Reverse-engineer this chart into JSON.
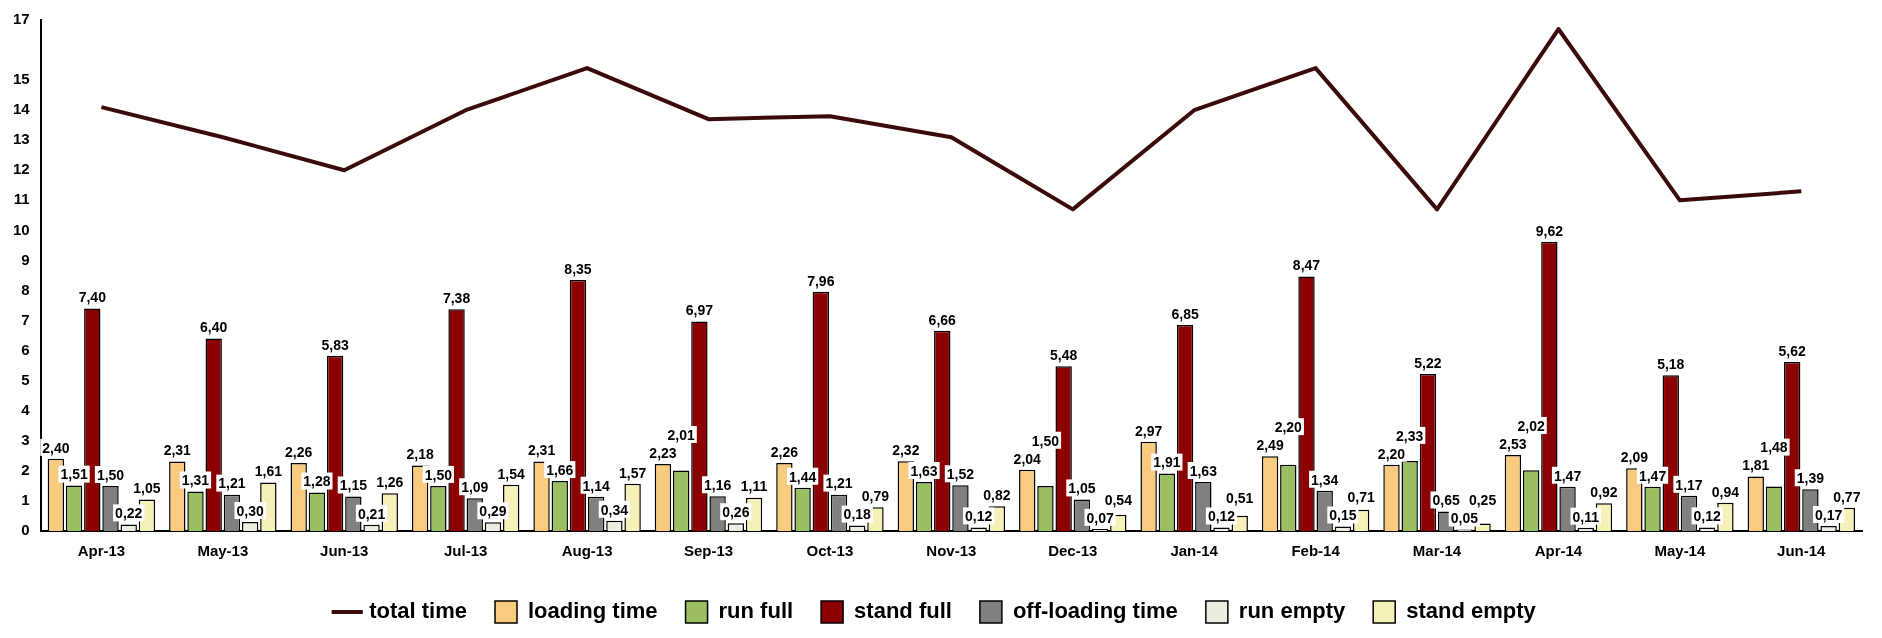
{
  "chart_data": {
    "type": "bar",
    "categories": [
      "Apr-13",
      "May-13",
      "Jun-13",
      "Jul-13",
      "Aug-13",
      "Sep-13",
      "Oct-13",
      "Nov-13",
      "Dec-13",
      "Jan-14",
      "Feb-14",
      "Mar-14",
      "Apr-14",
      "May-14",
      "Jun-14"
    ],
    "ylim": [
      0,
      17
    ],
    "yticks": [
      0,
      1,
      2,
      3,
      4,
      5,
      6,
      7,
      8,
      9,
      10,
      11,
      12,
      13,
      14,
      15,
      17
    ],
    "grid": false,
    "legend": "bottom",
    "series": [
      {
        "name": "total time",
        "type": "line",
        "color": "#3b0a0a",
        "marker": "none",
        "values": [
          14.1,
          13.1,
          12.0,
          14.0,
          15.4,
          13.7,
          13.8,
          13.1,
          10.7,
          14.0,
          15.4,
          10.7,
          16.7,
          11.0,
          11.3
        ]
      },
      {
        "name": "loading time",
        "color": "#f9cb7e",
        "values": [
          2.4,
          2.31,
          2.26,
          2.18,
          2.31,
          2.23,
          2.26,
          2.32,
          2.04,
          2.97,
          2.49,
          2.2,
          2.53,
          2.09,
          1.81
        ],
        "value_labels": [
          "2,40",
          "2,31",
          "2,26",
          "2,18",
          "2,31",
          "2,23",
          "2,26",
          "2,32",
          "2,04",
          "2,97",
          "2,49",
          "2,20",
          "2,53",
          "2,09",
          "1,81"
        ]
      },
      {
        "name": "run full",
        "color": "#9bbf60",
        "values": [
          1.51,
          1.31,
          1.28,
          1.5,
          1.66,
          2.01,
          1.44,
          1.63,
          1.5,
          1.91,
          2.2,
          2.33,
          2.02,
          1.47,
          1.48
        ],
        "value_labels": [
          "1,51",
          "1,31",
          "1,28",
          "1,50",
          "1,66",
          "2,01",
          "1,44",
          "1,63",
          "1,50",
          "1,91",
          "2,20",
          "2,33",
          "2,02",
          "1,47",
          "1,48"
        ]
      },
      {
        "name": "stand full",
        "color": "#8b0000",
        "values": [
          7.4,
          6.4,
          5.83,
          7.38,
          8.35,
          6.97,
          7.96,
          6.66,
          5.48,
          6.85,
          8.47,
          5.22,
          9.62,
          5.18,
          5.62
        ],
        "value_labels": [
          "7,40",
          "6,40",
          "5,83",
          "7,38",
          "8,35",
          "6,97",
          "7,96",
          "6,66",
          "5,48",
          "6,85",
          "8,47",
          "5,22",
          "9,62",
          "5,18",
          "5,62"
        ]
      },
      {
        "name": "off-loading time",
        "color": "#808080",
        "values": [
          1.5,
          1.21,
          1.15,
          1.09,
          1.14,
          1.16,
          1.21,
          1.52,
          1.05,
          1.63,
          1.34,
          0.65,
          1.47,
          1.17,
          1.39
        ],
        "value_labels": [
          "1,50",
          "1,21",
          "1,15",
          "1,09",
          "1,14",
          "1,16",
          "1,21",
          "1,52",
          "1,05",
          "1,63",
          "1,34",
          "0,65",
          "1,47",
          "1,17",
          "1,39"
        ]
      },
      {
        "name": "run empty",
        "color": "#eeece1",
        "values": [
          0.22,
          0.3,
          0.21,
          0.29,
          0.34,
          0.26,
          0.18,
          0.12,
          0.07,
          0.12,
          0.15,
          0.05,
          0.11,
          0.12,
          0.17
        ],
        "value_labels": [
          "0,22",
          "0,30",
          "0,21",
          "0,29",
          "0,34",
          "0,26",
          "0,18",
          "0,12",
          "0,07",
          "0,12",
          "0,15",
          "0,05",
          "0,11",
          "0,12",
          "0,17"
        ]
      },
      {
        "name": "stand empty",
        "color": "#f5f1b9",
        "values": [
          1.05,
          1.61,
          1.26,
          1.54,
          1.57,
          1.11,
          0.79,
          0.82,
          0.54,
          0.51,
          0.71,
          0.25,
          0.92,
          0.94,
          0.77
        ],
        "value_labels": [
          "1,05",
          "1,61",
          "1,26",
          "1,54",
          "1,57",
          "1,11",
          "0,79",
          "0,82",
          "0,54",
          "0,51",
          "0,71",
          "0,25",
          "0,92",
          "0,94",
          "0,77"
        ]
      }
    ]
  }
}
